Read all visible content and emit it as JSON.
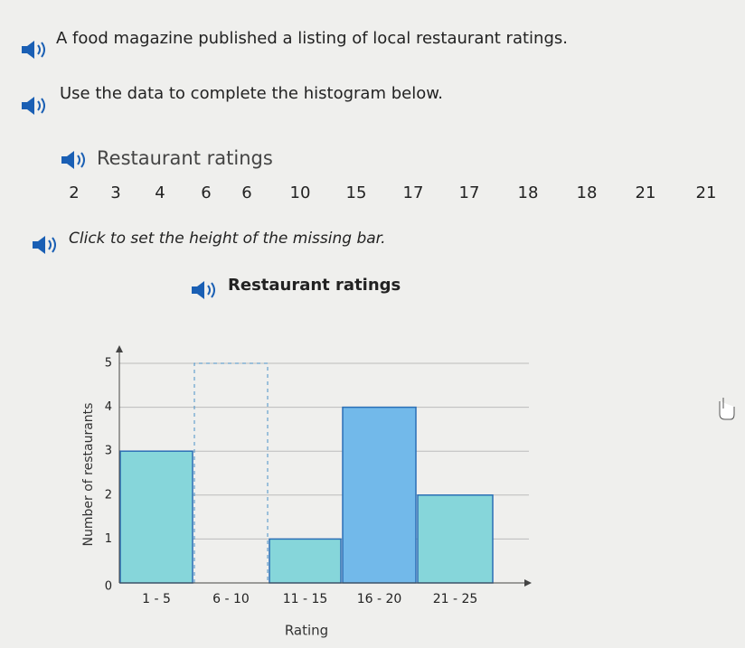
{
  "texts": {
    "intro": "A food magazine published a listing of local restaurant ratings.",
    "instruction": "Use the data to complete the histogram below.",
    "data_title": "Restaurant ratings",
    "prompt": "Click to set the height of the missing bar."
  },
  "ratings": [
    2,
    3,
    4,
    6,
    6,
    10,
    15,
    17,
    17,
    18,
    18,
    21,
    21
  ],
  "chart_data": {
    "type": "bar",
    "title": "Restaurant ratings",
    "categories": [
      "1 - 5",
      "6 - 10",
      "11 - 15",
      "16 - 20",
      "21 - 25"
    ],
    "values": [
      3,
      null,
      1,
      4,
      2
    ],
    "colors": [
      "#86d6da",
      null,
      "#86d6da",
      "#72b9ea",
      "#86d6da"
    ],
    "xlabel": "Rating",
    "ylabel": "Number of restaurants",
    "ylim": [
      0,
      5
    ],
    "yticks": [
      0,
      1,
      2,
      3,
      4,
      5
    ],
    "grid": true
  }
}
